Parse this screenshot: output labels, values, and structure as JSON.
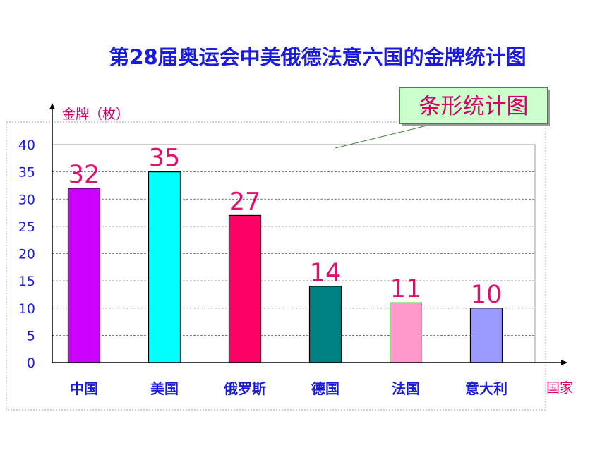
{
  "title": "第28届奥运会中美俄德法意六国的金牌统计图",
  "callout": "条形统计图",
  "colors": {
    "title": "#1a1ae0",
    "value_label": "#e0106a",
    "axis_text": "#1a1ae0",
    "unit_text": "#d6006a",
    "callout_bg": "#ccffcc"
  },
  "chart_data": {
    "type": "bar",
    "ylabel": "金牌（枚）",
    "xlabel": "国家",
    "categories": [
      "中国",
      "美国",
      "俄罗斯",
      "德国",
      "法国",
      "意大利"
    ],
    "values": [
      32,
      35,
      27,
      14,
      11,
      10
    ],
    "bar_colors": [
      "#cc00ff",
      "#00ffff",
      "#ff0066",
      "#008080",
      "#ff99cc",
      "#9999ff"
    ],
    "ylim": [
      0,
      40
    ],
    "yticks": [
      "0",
      "5",
      "10",
      "15",
      "20",
      "25",
      "30",
      "35",
      "40"
    ],
    "grid": true
  }
}
